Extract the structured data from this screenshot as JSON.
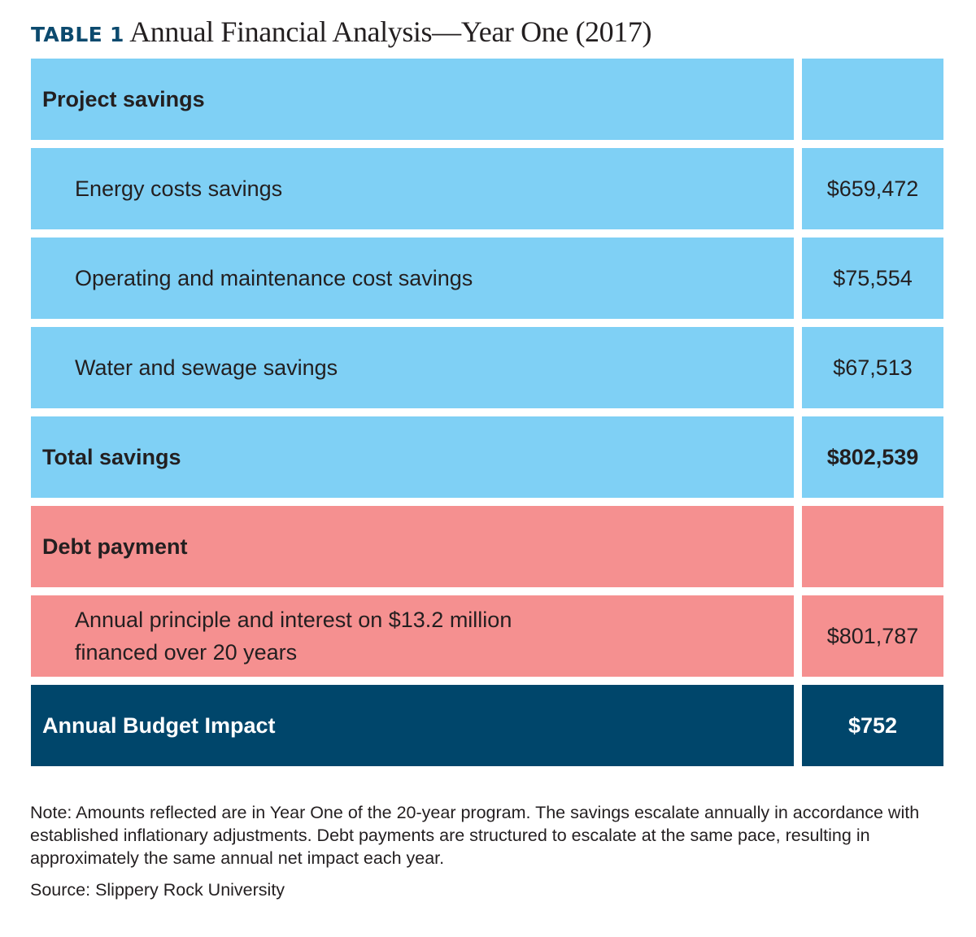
{
  "title": {
    "label": "TABLE 1",
    "text": "Annual Financial Analysis—Year One (2017)"
  },
  "rows": [
    {
      "label": "Project savings",
      "value": ""
    },
    {
      "label": "Energy costs savings",
      "value": "$659,472"
    },
    {
      "label": "Operating and maintenance cost savings",
      "value": "$75,554"
    },
    {
      "label": "Water and sewage savings",
      "value": "$67,513"
    },
    {
      "label": "Total savings",
      "value": "$802,539"
    },
    {
      "label": "Debt payment",
      "value": ""
    },
    {
      "label_line1": "Annual principle and interest on $13.2 million",
      "label_line2": "financed over 20 years",
      "value": "$801,787"
    },
    {
      "label": "Annual Budget Impact",
      "value": "$752"
    }
  ],
  "colors": {
    "savings": "#7fd0f5",
    "debt": "#f59090",
    "impact": "#00466b",
    "title_label": "#0c4a6e"
  },
  "note": "Note: Amounts reflected are in Year One of the 20-year program. The savings escalate annually in accordance with established inflationary adjustments. Debt payments are structured to escalate at the same pace, resulting in approximately the same annual net impact each year.",
  "source": "Source: Slippery Rock University"
}
